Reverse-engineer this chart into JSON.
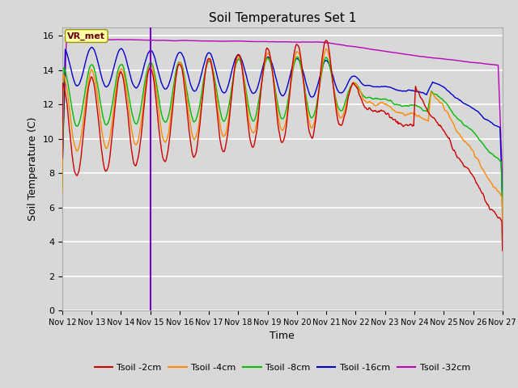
{
  "title": "Soil Temperatures Set 1",
  "xlabel": "Time",
  "ylabel": "Soil Temperature (C)",
  "ylim": [
    0,
    16.5
  ],
  "yticks": [
    0,
    2,
    4,
    6,
    8,
    10,
    12,
    14,
    16
  ],
  "bg_color": "#d8d8d8",
  "annotation_label": "VR_met",
  "series_colors": {
    "Tsoil -2cm": "#cc0000",
    "Tsoil -4cm": "#ff8800",
    "Tsoil -8cm": "#00bb00",
    "Tsoil -16cm": "#0000cc",
    "Tsoil -32cm": "#bb00bb"
  },
  "vline_color": "#7700cc",
  "xtick_labels": [
    "Nov 12",
    "Nov 13",
    "Nov 14",
    "Nov 15",
    "Nov 16",
    "Nov 17",
    "Nov 18",
    "Nov 19",
    "Nov 20",
    "Nov 21",
    "Nov 22",
    "Nov 23",
    "Nov 24",
    "Nov 25",
    "Nov 26",
    "Nov 27"
  ]
}
